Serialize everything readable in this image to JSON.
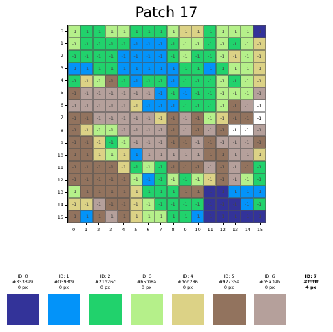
{
  "title": "Patch 17",
  "axis": {
    "x_ticks": [
      "0",
      "1",
      "2",
      "3",
      "4",
      "5",
      "6",
      "7",
      "8",
      "9",
      "10",
      "11",
      "12",
      "13",
      "14",
      "15"
    ],
    "y_ticks": [
      "0",
      "1",
      "2",
      "3",
      "4",
      "5",
      "6",
      "7",
      "8",
      "9",
      "10",
      "11",
      "12",
      "13",
      "14",
      "15"
    ]
  },
  "cell_label": "-1",
  "palette": [
    {
      "id_text": "ID: 0",
      "hex": "#333399",
      "count_text": "0 px",
      "bold": false
    },
    {
      "id_text": "ID: 1",
      "hex": "#0393f9",
      "count_text": "0 px",
      "bold": false
    },
    {
      "id_text": "ID: 2",
      "hex": "#21d26c",
      "count_text": "0 px",
      "bold": false
    },
    {
      "id_text": "ID: 3",
      "hex": "#b5f08a",
      "count_text": "0 px",
      "bold": false
    },
    {
      "id_text": "ID: 4",
      "hex": "#dcd286",
      "count_text": "0 px",
      "bold": false
    },
    {
      "id_text": "ID: 5",
      "hex": "#92735e",
      "count_text": "0 px",
      "bold": false
    },
    {
      "id_text": "ID: 6",
      "hex": "#b5a09b",
      "count_text": "0 px",
      "bold": false
    },
    {
      "id_text": "ID: 7",
      "hex": "#ffffff",
      "count_text": "4 px",
      "bold": true
    }
  ],
  "grid": [
    [
      3,
      2,
      2,
      3,
      3,
      2,
      2,
      2,
      3,
      4,
      4,
      2,
      3,
      3,
      3,
      0
    ],
    [
      3,
      2,
      2,
      2,
      2,
      1,
      1,
      1,
      2,
      3,
      3,
      2,
      3,
      2,
      3,
      4
    ],
    [
      2,
      2,
      2,
      2,
      1,
      1,
      1,
      1,
      2,
      3,
      2,
      2,
      3,
      4,
      3,
      4
    ],
    [
      1,
      1,
      2,
      2,
      1,
      1,
      1,
      1,
      1,
      2,
      2,
      1,
      2,
      3,
      3,
      4
    ],
    [
      2,
      4,
      3,
      5,
      2,
      1,
      2,
      2,
      1,
      2,
      2,
      2,
      3,
      2,
      3,
      4
    ],
    [
      5,
      6,
      6,
      6,
      6,
      6,
      6,
      1,
      2,
      1,
      2,
      2,
      3,
      3,
      3,
      6
    ],
    [
      6,
      6,
      6,
      6,
      6,
      4,
      1,
      1,
      1,
      2,
      2,
      2,
      3,
      5,
      6,
      7
    ],
    [
      5,
      5,
      6,
      6,
      6,
      6,
      6,
      4,
      5,
      6,
      5,
      3,
      4,
      5,
      5,
      7
    ],
    [
      5,
      4,
      3,
      3,
      6,
      6,
      6,
      6,
      5,
      6,
      5,
      6,
      5,
      7,
      7,
      6
    ],
    [
      5,
      5,
      4,
      2,
      3,
      6,
      6,
      6,
      5,
      5,
      6,
      5,
      6,
      6,
      6,
      5
    ],
    [
      5,
      5,
      4,
      3,
      4,
      1,
      6,
      6,
      6,
      6,
      6,
      5,
      5,
      6,
      6,
      4
    ],
    [
      5,
      5,
      5,
      5,
      4,
      2,
      3,
      2,
      5,
      5,
      5,
      6,
      5,
      6,
      5,
      2
    ],
    [
      5,
      5,
      5,
      5,
      5,
      3,
      1,
      2,
      3,
      2,
      3,
      4,
      5,
      6,
      3,
      2
    ],
    [
      3,
      5,
      5,
      5,
      5,
      4,
      2,
      2,
      2,
      5,
      5,
      0,
      0,
      1,
      1,
      1
    ],
    [
      4,
      4,
      6,
      5,
      5,
      4,
      3,
      2,
      2,
      2,
      2,
      0,
      0,
      0,
      1,
      2
    ],
    [
      5,
      1,
      5,
      6,
      5,
      4,
      3,
      3,
      2,
      2,
      1,
      0,
      0,
      0,
      0,
      0
    ]
  ]
}
